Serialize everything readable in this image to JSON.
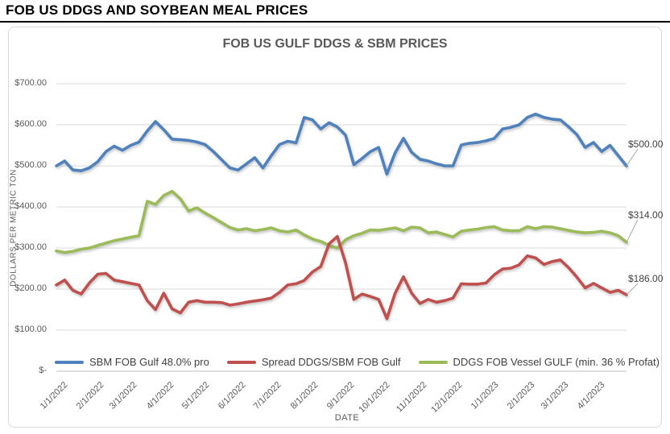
{
  "page": {
    "title": "FOB US DDGS AND SOYBEAN MEAL PRICES"
  },
  "chart_data": {
    "type": "line",
    "title": "FOB US GULF DDGS & SBM PRICES",
    "xlabel": "DATE",
    "ylabel": "DOLLARS PER METRIC TON",
    "ylim": [
      0,
      700
    ],
    "grid": true,
    "grid_color": "#D9D9D9",
    "legend_position": "bottom-inside",
    "y_tick_values": [
      700,
      600,
      500,
      400,
      300,
      200,
      100,
      0
    ],
    "y_tick_labels": [
      "$700.00",
      "$600.00",
      "$500.00",
      "$400.00",
      "$300.00",
      "$200.00",
      "$100.00",
      "$-"
    ],
    "x_start_date": "1/1/2022",
    "x_interval_days": 7,
    "x_total_days": 483,
    "x_tick_labels": [
      "1/1/2022",
      "2/1/2022",
      "3/1/2022",
      "4/1/2022",
      "5/1/2022",
      "6/1/2022",
      "7/1/2022",
      "8/1/2022",
      "9/1/2022",
      "10/1/2022",
      "11/1/2022",
      "12/1/2022",
      "1/1/2023",
      "2/1/2023",
      "3/1/2023",
      "4/1/2023"
    ],
    "series": [
      {
        "name": "SBM FOB Gulf 48.0% pro",
        "color": "#4F81BD",
        "end_label": "$500.00",
        "values": [
          500,
          512,
          490,
          488,
          495,
          510,
          535,
          548,
          538,
          550,
          558,
          585,
          608,
          588,
          565,
          564,
          562,
          558,
          552,
          535,
          515,
          495,
          490,
          505,
          520,
          495,
          525,
          552,
          560,
          556,
          618,
          612,
          590,
          605,
          595,
          575,
          503,
          518,
          535,
          545,
          480,
          532,
          567,
          533,
          516,
          512,
          505,
          500,
          500,
          551,
          555,
          557,
          561,
          567,
          590,
          594,
          600,
          618,
          626,
          618,
          614,
          612,
          595,
          576,
          545,
          557,
          535,
          550,
          525,
          500
        ]
      },
      {
        "name": "Spread DDGS/SBM FOB Gulf",
        "color": "#C0504D",
        "end_label": "$186.00",
        "values": [
          210,
          222,
          197,
          188,
          215,
          236,
          238,
          222,
          218,
          214,
          210,
          172,
          150,
          190,
          152,
          142,
          168,
          172,
          168,
          168,
          167,
          161,
          164,
          168,
          171,
          174,
          178,
          192,
          210,
          213,
          221,
          242,
          255,
          310,
          328,
          264,
          175,
          188,
          182,
          175,
          128,
          190,
          230,
          190,
          165,
          175,
          168,
          172,
          178,
          213,
          212,
          212,
          215,
          235,
          249,
          251,
          259,
          281,
          276,
          260,
          267,
          271,
          252,
          229,
          203,
          214,
          203,
          192,
          197,
          186
        ]
      },
      {
        "name": "DDGS FOB Vessel GULF  (min. 36 % Profat)",
        "color": "#9BBB59",
        "end_label": "$314.00",
        "values": [
          293,
          289,
          292,
          297,
          300,
          306,
          312,
          318,
          322,
          326,
          330,
          414,
          406,
          428,
          438,
          420,
          390,
          398,
          385,
          374,
          362,
          350,
          344,
          347,
          342,
          345,
          349,
          342,
          339,
          344,
          332,
          322,
          316,
          306,
          300,
          320,
          330,
          336,
          344,
          343,
          346,
          349,
          342,
          351,
          349,
          337,
          339,
          333,
          327,
          341,
          344,
          346,
          350,
          352,
          344,
          342,
          342,
          352,
          347,
          352,
          351,
          347,
          343,
          339,
          337,
          338,
          341,
          337,
          330,
          314
        ]
      }
    ]
  }
}
